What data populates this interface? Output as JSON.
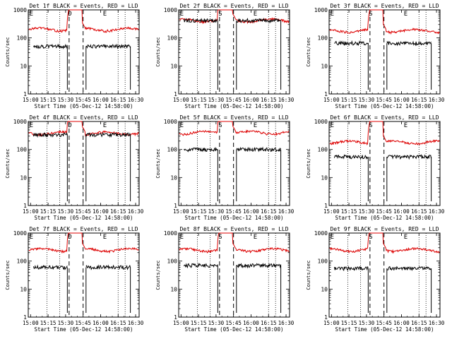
{
  "chart_data": {
    "type": "line",
    "layout": "3x3 grid of panels",
    "ylabel": "Counts/sec",
    "xlabel": "Start Time (05-Dec-12 14:58:00)",
    "x_ticks": [
      "15:00",
      "15:15",
      "15:30",
      "15:45",
      "16:00",
      "16:15",
      "16:30"
    ],
    "x_range_minutes": [
      0,
      95
    ],
    "y_scale": "log",
    "y_range": [
      1,
      1000
    ],
    "y_ticks": [
      "1",
      "10",
      "100",
      "1000"
    ],
    "series_colors": {
      "events": "#000000",
      "lld": "#dd0000"
    },
    "panels": [
      {
        "title": "Det 1f BLACK = Events, RED = LLD",
        "markers": [
          "E",
          "D",
          "E"
        ],
        "lld_base": 200,
        "event_base": 50
      },
      {
        "title": "Det 2f BLACK = Events, RED = LLD",
        "markers": [
          "E",
          "S",
          "E"
        ],
        "lld_base": 420,
        "event_base": 420
      },
      {
        "title": "Det 3f BLACK = Events, RED = LLD",
        "markers": [
          "E",
          "S",
          "E"
        ],
        "lld_base": 180,
        "event_base": 65
      },
      {
        "title": "Det 4f BLACK = Events, RED = LLD",
        "markers": [
          "E",
          "D",
          "E"
        ],
        "lld_base": 380,
        "event_base": 340
      },
      {
        "title": "Det 5f BLACK = Events, RED = LLD",
        "markers": [
          "E",
          "S",
          "E"
        ],
        "lld_base": 400,
        "event_base": 100
      },
      {
        "title": "Det 6f BLACK = Events, RED = LLD",
        "markers": [
          "E",
          "S",
          "E"
        ],
        "lld_base": 180,
        "event_base": 55
      },
      {
        "title": "Det 7f BLACK = Events, RED = LLD",
        "markers": [
          "E",
          "D",
          "E"
        ],
        "lld_base": 250,
        "event_base": 60
      },
      {
        "title": "Det 8f BLACK = Events, RED = LLD",
        "markers": [
          "E",
          "S",
          "E"
        ],
        "lld_base": 250,
        "event_base": 70
      },
      {
        "title": "Det 9f BLACK = Events, RED = LLD",
        "markers": [
          "E",
          "S",
          "E"
        ],
        "lld_base": 250,
        "event_base": 55
      }
    ]
  }
}
